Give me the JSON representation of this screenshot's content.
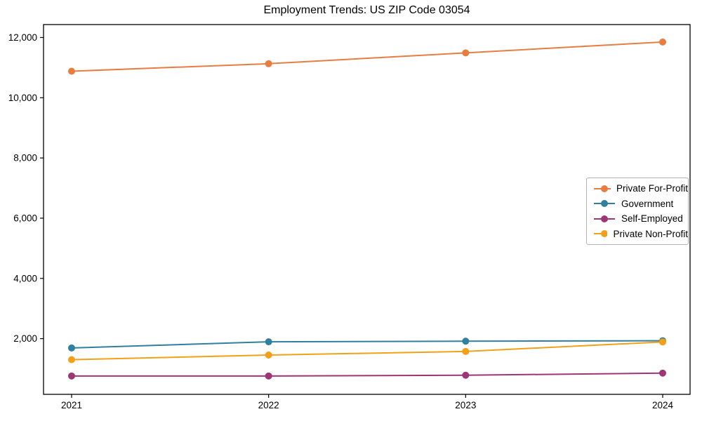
{
  "chart_data": {
    "type": "line",
    "title": "Employment Trends: US ZIP Code 03054",
    "xlabel": "",
    "ylabel": "",
    "x": [
      2021,
      2022,
      2023,
      2024
    ],
    "x_tick_labels": [
      "2021",
      "2022",
      "2023",
      "2024"
    ],
    "y_ticks": [
      2000,
      4000,
      6000,
      8000,
      10000,
      12000
    ],
    "y_tick_labels": [
      "2,000",
      "4,000",
      "6,000",
      "8,000",
      "10,000",
      "12,000"
    ],
    "ylim": [
      150,
      12430
    ],
    "grid": false,
    "legend_position": "center right",
    "marker": "circle",
    "series": [
      {
        "name": "Private For-Profit",
        "color": "#e87d41",
        "values": [
          10880,
          11130,
          11490,
          11850
        ]
      },
      {
        "name": "Government",
        "color": "#2f809e",
        "values": [
          1690,
          1895,
          1915,
          1930
        ]
      },
      {
        "name": "Self-Employed",
        "color": "#9e3675",
        "values": [
          760,
          760,
          785,
          855
        ]
      },
      {
        "name": "Private Non-Profit",
        "color": "#f3a019",
        "values": [
          1300,
          1455,
          1575,
          1890
        ]
      }
    ]
  }
}
